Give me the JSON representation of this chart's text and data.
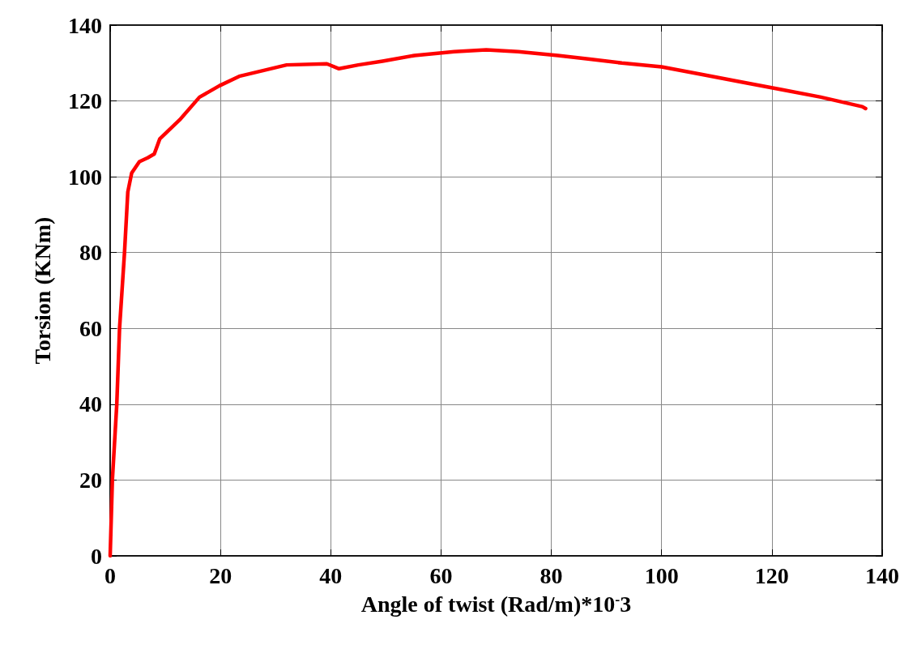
{
  "chart_data": {
    "type": "line",
    "xlabel": "Angle of twist (Rad/m)*10$^{-}$3",
    "ylabel": "Torsion (KNm)",
    "series": [
      {
        "color": "#ff0000",
        "x": [
          0,
          0.4,
          1.2,
          1.7,
          2.6,
          3.2,
          3.9,
          5.3,
          6.8,
          8,
          9,
          12.6,
          16.2,
          19.8,
          23.4,
          27.7,
          32,
          39.3,
          41.5,
          45,
          49.4,
          55.2,
          62.4,
          68.2,
          74,
          81.2,
          87,
          92.8,
          100,
          107.2,
          114.5,
          121.7,
          128.9,
          136.4,
          137
        ],
        "values": [
          0,
          20,
          40,
          60,
          80,
          96,
          101,
          104,
          105,
          106,
          110,
          115,
          121,
          124,
          126.5,
          128,
          129.5,
          129.8,
          128.5,
          129.5,
          130.5,
          132,
          133,
          133.5,
          133,
          132,
          131,
          130,
          129,
          127,
          125,
          123,
          121,
          118.5,
          118
        ]
      }
    ],
    "xlim": [
      0,
      140
    ],
    "xticks": [
      0,
      20,
      40,
      60,
      80,
      100,
      120,
      140
    ],
    "ylim": [
      0,
      140
    ],
    "yticks": [
      0,
      20,
      40,
      60,
      80,
      100,
      120,
      140
    ],
    "grid": true,
    "marker": "none",
    "line_style": "solid"
  }
}
